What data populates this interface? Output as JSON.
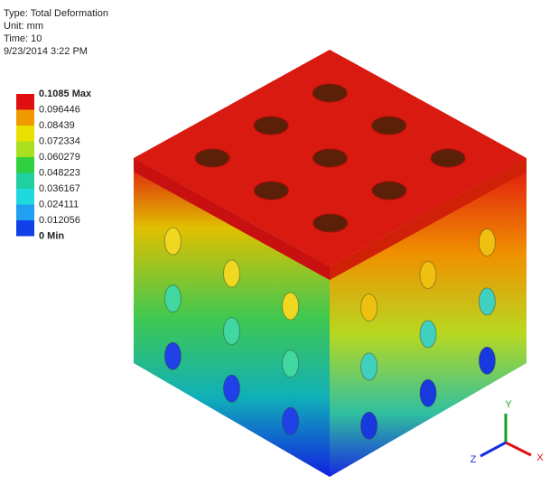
{
  "header": {
    "lines": [
      "Type: Total Deformation",
      "Unit: mm",
      "Time: 10",
      "9/23/2014 3:22 PM"
    ]
  },
  "legend": {
    "labels": [
      "0.1085 Max",
      "0.096446",
      "0.08439",
      "0.072334",
      "0.060279",
      "0.048223",
      "0.036167",
      "0.024111",
      "0.012056",
      "0 Min"
    ],
    "colors": [
      "#e01010",
      "#f09a00",
      "#e8e000",
      "#a8e020",
      "#30d040",
      "#20d0a0",
      "#20d8e0",
      "#20a0f0",
      "#1040e8"
    ]
  },
  "triad": {
    "y": "Y",
    "x": "X",
    "z": "Z"
  }
}
